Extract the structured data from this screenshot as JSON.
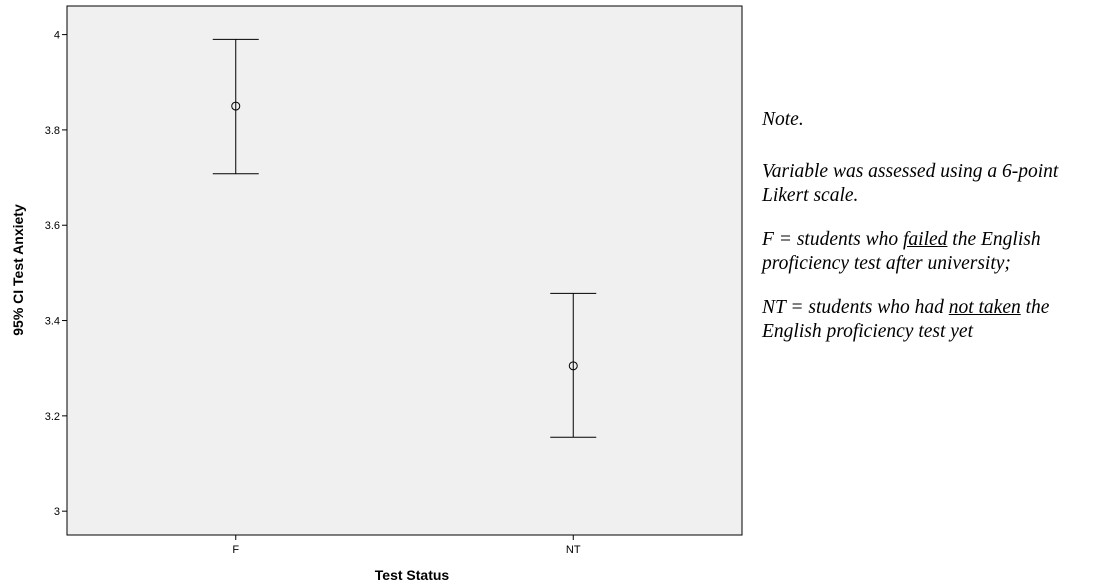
{
  "chart_data": {
    "type": "errorbar",
    "categories": [
      "F",
      "NT"
    ],
    "means": [
      3.85,
      3.305
    ],
    "ci_lower": [
      3.708,
      3.155
    ],
    "ci_upper": [
      3.99,
      3.457
    ],
    "xlabel": "Test Status",
    "ylabel": "95% CI Test Anxiety",
    "ylim": [
      2.95,
      4.06
    ],
    "yticks": [
      "3",
      "3.2",
      "3.4",
      "3.6",
      "3.8",
      "4"
    ],
    "grid": false,
    "plot_background": "#f0f0f0"
  },
  "note": {
    "heading": "Note.",
    "scale": "Variable was assessed using a 6-point Likert scale.",
    "f_prefix": "F = students who ",
    "f_emph": "failed",
    "f_suffix": " the English proficiency test after university;",
    "nt_prefix": "NT = students who had ",
    "nt_emph": "not taken",
    "nt_suffix": " the English proficiency test yet"
  }
}
